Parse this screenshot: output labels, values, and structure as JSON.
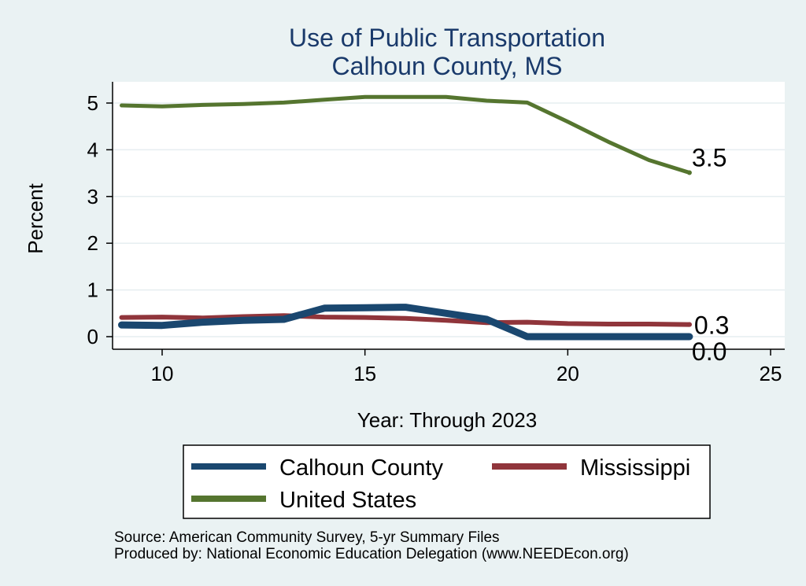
{
  "chart_data": {
    "type": "line",
    "title": [
      "Use of Public Transportation",
      "Calhoun County, MS"
    ],
    "xlabel": "Year: Through 2023",
    "ylabel": "Percent",
    "xlim": [
      9,
      25
    ],
    "ylim": [
      0,
      5.2
    ],
    "xticks": [
      10,
      15,
      20,
      25
    ],
    "yticks": [
      0,
      1,
      2,
      3,
      4,
      5
    ],
    "grid": true,
    "legend_position": "bottom",
    "x": [
      9,
      10,
      11,
      12,
      13,
      14,
      15,
      16,
      17,
      18,
      19,
      20,
      21,
      22,
      23
    ],
    "series": [
      {
        "name": "Calhoun County",
        "color": "#1a476f",
        "values": [
          0.25,
          0.24,
          0.31,
          0.35,
          0.37,
          0.61,
          0.62,
          0.63,
          0.5,
          0.37,
          0.0,
          0.0,
          0.0,
          0.0,
          0.0
        ],
        "end_label": "0.0"
      },
      {
        "name": "Mississippi",
        "color": "#90353b",
        "values": [
          0.41,
          0.42,
          0.4,
          0.43,
          0.45,
          0.42,
          0.41,
          0.39,
          0.35,
          0.3,
          0.31,
          0.28,
          0.27,
          0.27,
          0.26
        ],
        "end_label": "0.3"
      },
      {
        "name": "United States",
        "color": "#55752f",
        "values": [
          4.95,
          4.93,
          4.96,
          4.98,
          5.01,
          5.07,
          5.13,
          5.13,
          5.13,
          5.05,
          5.01,
          4.6,
          4.17,
          3.78,
          3.51
        ],
        "end_label": "3.5"
      }
    ]
  },
  "footer": {
    "source": "Source: American Community Survey, 5-yr Summary Files",
    "producer": "Produced by: National Economic Education Delegation (www.NEEDEcon.org)"
  }
}
